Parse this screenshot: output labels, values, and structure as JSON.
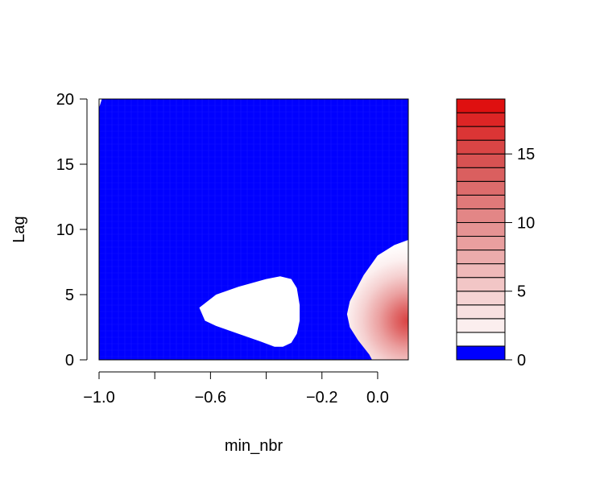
{
  "chart_data": {
    "type": "contour",
    "xlabel": "min_nbr",
    "ylabel": "Lag",
    "xlim": [
      -1.0,
      0.11
    ],
    "ylim": [
      0,
      20
    ],
    "x_ticks": [
      {
        "value": -1.0,
        "label": "−1.0"
      },
      {
        "value": -0.8,
        "label": ""
      },
      {
        "value": -0.6,
        "label": "−0.6"
      },
      {
        "value": -0.4,
        "label": ""
      },
      {
        "value": -0.2,
        "label": "−0.2"
      },
      {
        "value": 0.0,
        "label": "0.0"
      }
    ],
    "y_ticks": [
      {
        "value": 0,
        "label": "0"
      },
      {
        "value": 5,
        "label": "5"
      },
      {
        "value": 10,
        "label": "10"
      },
      {
        "value": 15,
        "label": "15"
      },
      {
        "value": 20,
        "label": "20"
      }
    ],
    "background_color": "#0000ff",
    "regions": [
      {
        "name": "white-island",
        "color": "#ffffff",
        "outline": [
          [
            -0.64,
            4.0
          ],
          [
            -0.58,
            5.0
          ],
          [
            -0.5,
            5.6
          ],
          [
            -0.4,
            6.2
          ],
          [
            -0.35,
            6.4
          ],
          [
            -0.31,
            6.2
          ],
          [
            -0.29,
            5.5
          ],
          [
            -0.28,
            4.2
          ],
          [
            -0.28,
            3.0
          ],
          [
            -0.29,
            2.0
          ],
          [
            -0.31,
            1.3
          ],
          [
            -0.34,
            1.0
          ],
          [
            -0.37,
            1.0
          ],
          [
            -0.42,
            1.4
          ],
          [
            -0.5,
            2.0
          ],
          [
            -0.58,
            2.6
          ],
          [
            -0.62,
            3.0
          ],
          [
            -0.64,
            4.0
          ]
        ]
      },
      {
        "name": "white-corner",
        "color": "#ffffff",
        "outline": [
          [
            -1.0,
            19.3
          ],
          [
            -0.99,
            20.0
          ],
          [
            -1.0,
            20.0
          ]
        ]
      },
      {
        "name": "red-gradient-region",
        "color": "#ffffff",
        "outline": [
          [
            0.11,
            9.2
          ],
          [
            0.06,
            8.8
          ],
          [
            0.0,
            8.0
          ],
          [
            -0.05,
            6.5
          ],
          [
            -0.1,
            4.5
          ],
          [
            -0.11,
            3.5
          ],
          [
            -0.1,
            2.5
          ],
          [
            -0.07,
            1.5
          ],
          [
            -0.03,
            0.4
          ],
          [
            -0.02,
            0.0
          ],
          [
            0.11,
            0.0
          ]
        ],
        "peak": {
          "x": 0.11,
          "y": 3.0,
          "max_value": 18
        }
      }
    ],
    "colorbar": {
      "levels": [
        0,
        1,
        2,
        3,
        4,
        5,
        6,
        7,
        8,
        9,
        10,
        11,
        12,
        13,
        14,
        15,
        16,
        17,
        18,
        19
      ],
      "colors": [
        "#0000ff",
        "#ffffff",
        "#fbeeee",
        "#f8e0e0",
        "#f5d3d3",
        "#f2c6c6",
        "#efb9b9",
        "#ecacac",
        "#e99f9f",
        "#e69393",
        "#e38686",
        "#e07979",
        "#dd6c6c",
        "#da5f5f",
        "#d75252",
        "#d94545",
        "#db3535",
        "#dd2525",
        "#df1010"
      ],
      "ticks": [
        0,
        5,
        10,
        15
      ],
      "tick_labels": [
        "0",
        "5",
        "10",
        "15"
      ],
      "range": [
        0,
        19
      ]
    }
  }
}
